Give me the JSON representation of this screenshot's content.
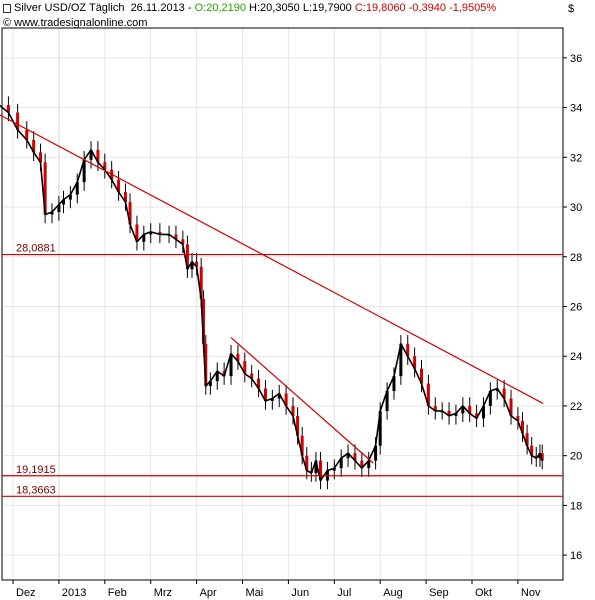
{
  "header": {
    "symbol": "Silver USD/OZ Täglich",
    "date": "26.11.2013",
    "open": "O:20,2190",
    "high": "H:20,3050",
    "low": "L:19,7900",
    "close": "C:19,8060",
    "change": "-0,3940",
    "change_pct": "-1,9505%",
    "source": "www.tradesignalonline.com",
    "currency": "$"
  },
  "colors": {
    "up": "#2a9d00",
    "down": "#d00000",
    "line": "#d00000",
    "candle": "#000000",
    "grid": "#e6e6e6",
    "background": "#ffffff"
  },
  "chart_data": {
    "type": "line",
    "title": "Silver USD/OZ Täglich",
    "ylim": [
      15,
      37.2
    ],
    "y_ticks": [
      16,
      18,
      20,
      22,
      24,
      26,
      28,
      30,
      32,
      34,
      36
    ],
    "x_labels": [
      {
        "label": "Dez",
        "month": 0.0
      },
      {
        "label": "2013",
        "month": 1.0
      },
      {
        "label": "Feb",
        "month": 2.0
      },
      {
        "label": "Mrz",
        "month": 3.0
      },
      {
        "label": "Apr",
        "month": 4.0
      },
      {
        "label": "Mai",
        "month": 5.0
      },
      {
        "label": "Jun",
        "month": 6.0
      },
      {
        "label": "Jul",
        "month": 7.0
      },
      {
        "label": "Aug",
        "month": 8.0
      },
      {
        "label": "Sep",
        "month": 9.0
      },
      {
        "label": "Okt",
        "month": 10.0
      },
      {
        "label": "Nov",
        "month": 11.0
      }
    ],
    "price_series": {
      "name": "Silver USD/OZ",
      "points": [
        [
          -0.3,
          34.1
        ],
        [
          -0.1,
          33.8
        ],
        [
          0.1,
          33.1
        ],
        [
          0.3,
          32.7
        ],
        [
          0.45,
          32.2
        ],
        [
          0.6,
          31.8
        ],
        [
          0.7,
          29.7
        ],
        [
          0.85,
          29.8
        ],
        [
          1.0,
          30.1
        ],
        [
          1.1,
          30.3
        ],
        [
          1.25,
          30.5
        ],
        [
          1.4,
          31.0
        ],
        [
          1.55,
          31.9
        ],
        [
          1.7,
          32.3
        ],
        [
          1.85,
          31.8
        ],
        [
          2.0,
          31.5
        ],
        [
          2.15,
          31.1
        ],
        [
          2.3,
          30.6
        ],
        [
          2.45,
          30.2
        ],
        [
          2.55,
          29.3
        ],
        [
          2.7,
          28.6
        ],
        [
          2.85,
          28.9
        ],
        [
          3.0,
          29.0
        ],
        [
          3.2,
          28.9
        ],
        [
          3.4,
          28.9
        ],
        [
          3.55,
          28.7
        ],
        [
          3.7,
          28.5
        ],
        [
          3.8,
          27.5
        ],
        [
          3.9,
          27.8
        ],
        [
          4.0,
          27.6
        ],
        [
          4.1,
          26.3
        ],
        [
          4.15,
          24.5
        ],
        [
          4.2,
          22.8
        ],
        [
          4.3,
          23.0
        ],
        [
          4.45,
          23.4
        ],
        [
          4.6,
          23.2
        ],
        [
          4.75,
          24.1
        ],
        [
          4.9,
          23.8
        ],
        [
          5.05,
          23.3
        ],
        [
          5.2,
          23.1
        ],
        [
          5.35,
          22.7
        ],
        [
          5.5,
          22.2
        ],
        [
          5.65,
          22.3
        ],
        [
          5.8,
          22.5
        ],
        [
          5.95,
          22.0
        ],
        [
          6.1,
          21.6
        ],
        [
          6.2,
          20.8
        ],
        [
          6.3,
          20.0
        ],
        [
          6.4,
          19.4
        ],
        [
          6.5,
          19.3
        ],
        [
          6.6,
          19.8
        ],
        [
          6.7,
          19.0
        ],
        [
          6.85,
          19.4
        ],
        [
          7.0,
          19.5
        ],
        [
          7.15,
          19.9
        ],
        [
          7.3,
          20.1
        ],
        [
          7.45,
          19.8
        ],
        [
          7.6,
          19.5
        ],
        [
          7.75,
          19.8
        ],
        [
          7.9,
          20.4
        ],
        [
          8.0,
          21.8
        ],
        [
          8.15,
          22.6
        ],
        [
          8.3,
          23.2
        ],
        [
          8.45,
          24.5
        ],
        [
          8.6,
          24.0
        ],
        [
          8.75,
          23.5
        ],
        [
          8.9,
          22.9
        ],
        [
          9.05,
          22.0
        ],
        [
          9.2,
          21.8
        ],
        [
          9.35,
          21.8
        ],
        [
          9.5,
          21.6
        ],
        [
          9.65,
          21.7
        ],
        [
          9.8,
          22.0
        ],
        [
          9.95,
          21.7
        ],
        [
          10.1,
          21.5
        ],
        [
          10.25,
          22.0
        ],
        [
          10.4,
          22.6
        ],
        [
          10.55,
          22.7
        ],
        [
          10.7,
          22.3
        ],
        [
          10.85,
          21.6
        ],
        [
          11.0,
          21.4
        ],
        [
          11.1,
          20.9
        ],
        [
          11.2,
          20.4
        ],
        [
          11.3,
          20.0
        ],
        [
          11.4,
          19.9
        ],
        [
          11.48,
          20.1
        ],
        [
          11.53,
          19.8
        ]
      ]
    },
    "annotations": [
      {
        "type": "hline",
        "value": 28.0881,
        "label": "28,0881"
      },
      {
        "type": "hline",
        "value": 19.1915,
        "label": "19,1915"
      },
      {
        "type": "hline",
        "value": 18.3663,
        "label": "18,3663"
      },
      {
        "type": "trendline",
        "x1": -1.2,
        "y1": 34.6,
        "x2": 11.55,
        "y2": 22.1
      },
      {
        "type": "trendline",
        "x1": 4.75,
        "y1": 24.75,
        "x2": 7.85,
        "y2": 19.7
      }
    ]
  }
}
